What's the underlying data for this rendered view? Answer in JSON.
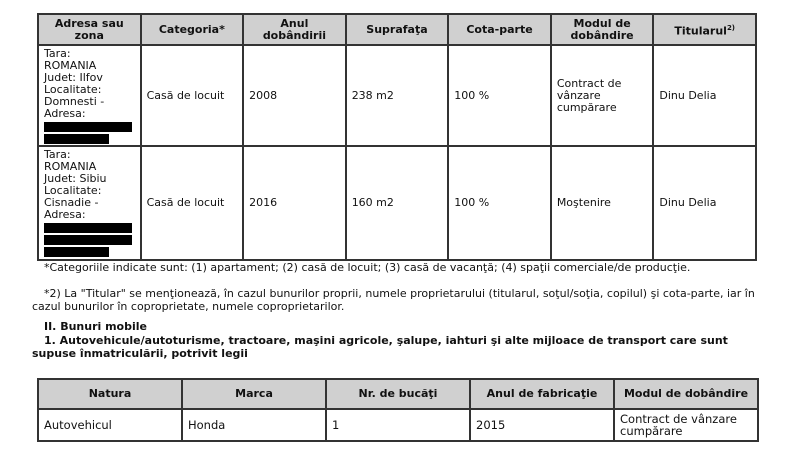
{
  "real_estate_table": {
    "headers": [
      "Adresa sau zona",
      "Categoria*",
      "Anul dobândirii",
      "Suprafaţa",
      "Cota-parte",
      "Modul de dobândire",
      "Titularul"
    ],
    "titular_sup": "2)",
    "rows": [
      {
        "address": [
          "Tara:",
          "ROMANIA",
          "Judet: Ilfov",
          "Localitate:",
          "Domnesti -",
          "Adresa:"
        ],
        "category": "Casă de locuit",
        "year": "2008",
        "area": "238 m2",
        "share": "100 %",
        "mode": "Contract de vânzare cumpărare",
        "owner": "Dinu Delia"
      },
      {
        "address": [
          "Tara:",
          "ROMANIA",
          "Judet: Sibiu",
          "Localitate:",
          "Cisnadie -",
          "Adresa:"
        ],
        "category": "Casă de locuit",
        "year": "2016",
        "area": "160 m2",
        "share": "100 %",
        "mode": "Moştenire",
        "owner": "Dinu Delia"
      }
    ]
  },
  "notes": {
    "note1": "*Categoriile indicate sunt: (1) apartament; (2) casă de locuit; (3) casă de vacanţă; (4) spaţii comerciale/de producţie.",
    "note2": "*2) La \"Titular\" se menţionează, în cazul bunurilor proprii, numele proprietarului (titularul, soţul/soţia, copilul) şi cota-parte, iar în cazul bunurilor în coproprietate, numele coproprietarilor."
  },
  "section": {
    "title": "II. Bunuri mobile",
    "subtitle": "1. Autovehicule/autoturisme, tractoare, maşini agricole, şalupe, iahturi şi alte mijloace de transport care sunt supuse înmatriculării, potrivit legii"
  },
  "vehicles_table": {
    "headers": [
      "Natura",
      "Marca",
      "Nr. de bucăţi",
      "Anul de fabricaţie",
      "Modul de dobândire"
    ],
    "rows": [
      {
        "type": "Autovehicul",
        "brand": "Honda",
        "count": "1",
        "year": "2015",
        "mode": "Contract de vânzare cumpărare"
      }
    ]
  }
}
